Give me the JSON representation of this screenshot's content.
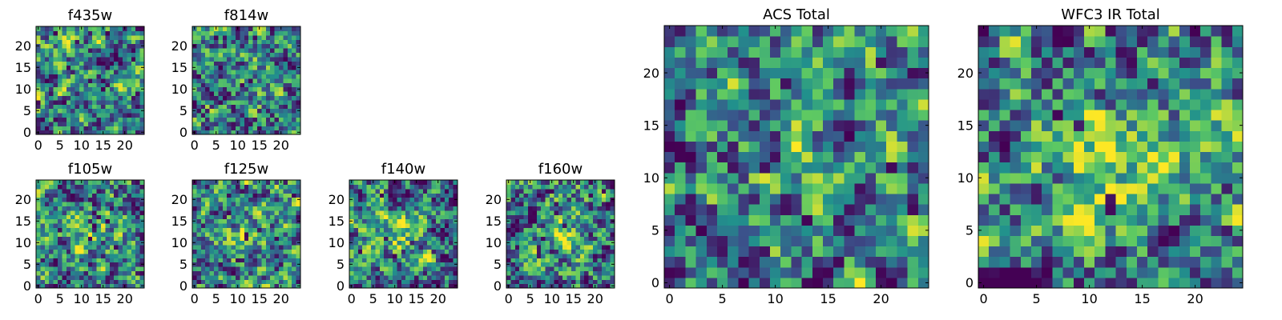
{
  "figure": {
    "colormap": [
      "#440154",
      "#3b528b",
      "#21918c",
      "#5ec962",
      "#fde725"
    ]
  },
  "chart_data": [
    {
      "type": "heatmap",
      "title": "f435w",
      "grid": [
        25,
        25
      ],
      "xticks": [
        "0",
        "5",
        "10",
        "15",
        "20"
      ],
      "yticks": [
        "0",
        "5",
        "10",
        "15",
        "20"
      ],
      "seed": 11,
      "center_boost": 0.0,
      "dark_frac": 0.05
    },
    {
      "type": "heatmap",
      "title": "f814w",
      "grid": [
        25,
        25
      ],
      "xticks": [
        "0",
        "5",
        "10",
        "15",
        "20"
      ],
      "yticks": [
        "0",
        "5",
        "10",
        "15",
        "20"
      ],
      "seed": 23,
      "center_boost": 0.08,
      "dark_frac": 0.04
    },
    {
      "type": "heatmap",
      "title": "f105w",
      "grid": [
        25,
        25
      ],
      "xticks": [
        "0",
        "5",
        "10",
        "15",
        "20"
      ],
      "yticks": [
        "0",
        "5",
        "10",
        "15",
        "20"
      ],
      "seed": 37,
      "center_boost": 0.15,
      "dark_frac": 0.05
    },
    {
      "type": "heatmap",
      "title": "f125w",
      "grid": [
        25,
        25
      ],
      "xticks": [
        "0",
        "5",
        "10",
        "15",
        "20"
      ],
      "yticks": [
        "0",
        "5",
        "10",
        "15",
        "20"
      ],
      "seed": 41,
      "center_boost": 0.18,
      "dark_frac": 0.05
    },
    {
      "type": "heatmap",
      "title": "f140w",
      "grid": [
        25,
        25
      ],
      "xticks": [
        "0",
        "5",
        "10",
        "15",
        "20"
      ],
      "yticks": [
        "0",
        "5",
        "10",
        "15",
        "20"
      ],
      "seed": 53,
      "center_boost": 0.16,
      "dark_frac": 0.04
    },
    {
      "type": "heatmap",
      "title": "f160w",
      "grid": [
        25,
        25
      ],
      "xticks": [
        "0",
        "5",
        "10",
        "15",
        "20"
      ],
      "yticks": [
        "0",
        "5",
        "10",
        "15",
        "20"
      ],
      "seed": 67,
      "center_boost": 0.2,
      "dark_frac": 0.04
    },
    {
      "type": "heatmap",
      "title": "ACS Total",
      "grid": [
        25,
        25
      ],
      "xticks": [
        "0",
        "5",
        "10",
        "15",
        "20"
      ],
      "yticks": [
        "0",
        "5",
        "10",
        "15",
        "20"
      ],
      "seed": 79,
      "center_boost": 0.12,
      "dark_frac": 0.04
    },
    {
      "type": "heatmap",
      "title": "WFC3 IR Total",
      "grid": [
        25,
        25
      ],
      "xticks": [
        "0",
        "5",
        "10",
        "15",
        "20"
      ],
      "yticks": [
        "0",
        "5",
        "10",
        "15",
        "20"
      ],
      "seed": 97,
      "center_boost": 0.22,
      "dark_frac": 0.03
    }
  ]
}
